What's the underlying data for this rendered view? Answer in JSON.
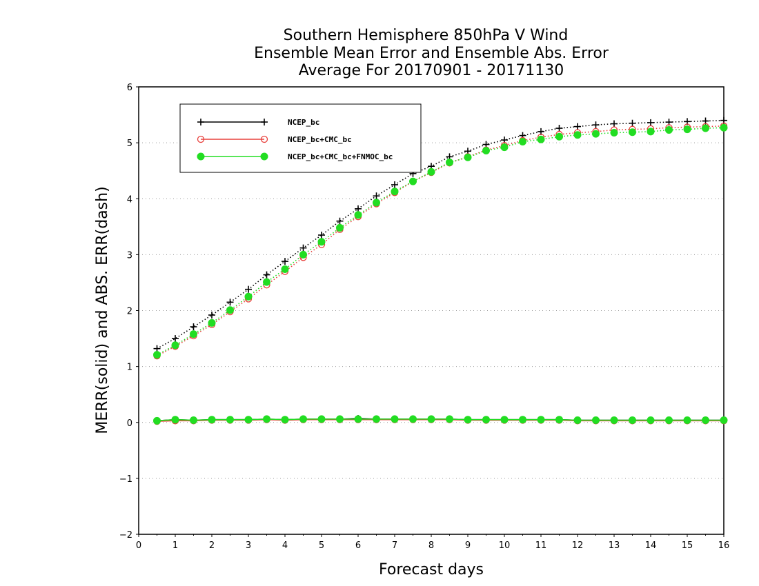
{
  "chart_data": {
    "type": "line",
    "title_lines": [
      "Southern Hemisphere 850hPa V Wind",
      "Ensemble Mean Error and Ensemble Abs. Error",
      "Average For 20170901 - 20171130"
    ],
    "xlabel": "Forecast days",
    "ylabel": "MERR(solid) and ABS. ERR(dash)",
    "xlim": [
      0,
      16
    ],
    "ylim": [
      -2,
      6
    ],
    "x_ticks": [
      0,
      1,
      2,
      3,
      4,
      5,
      6,
      7,
      8,
      9,
      10,
      11,
      12,
      13,
      14,
      15,
      16
    ],
    "y_ticks": [
      -2,
      -1,
      0,
      1,
      2,
      3,
      4,
      5,
      6
    ],
    "grid": "horizontal dotted",
    "legend_position": "top-left",
    "x": [
      0.5,
      1,
      1.5,
      2,
      2.5,
      3,
      3.5,
      4,
      4.5,
      5,
      5.5,
      6,
      6.5,
      7,
      7.5,
      8,
      8.5,
      9,
      9.5,
      10,
      10.5,
      11,
      11.5,
      12,
      12.5,
      13,
      13.5,
      14,
      14.5,
      15,
      15.5,
      16
    ],
    "series": [
      {
        "name": "NCEP_bc",
        "color": "#000000",
        "marker": "plus",
        "abs_err": [
          1.32,
          1.5,
          1.71,
          1.92,
          2.15,
          2.38,
          2.64,
          2.88,
          3.12,
          3.35,
          3.6,
          3.82,
          4.05,
          4.25,
          4.45,
          4.58,
          4.75,
          4.85,
          4.97,
          5.05,
          5.13,
          5.2,
          5.26,
          5.29,
          5.32,
          5.34,
          5.35,
          5.36,
          5.37,
          5.38,
          5.39,
          5.4
        ],
        "mean_err": [
          0.03,
          0.05,
          0.04,
          0.05,
          0.05,
          0.05,
          0.06,
          0.05,
          0.06,
          0.06,
          0.06,
          0.07,
          0.06,
          0.06,
          0.06,
          0.06,
          0.06,
          0.05,
          0.05,
          0.05,
          0.05,
          0.05,
          0.05,
          0.04,
          0.04,
          0.04,
          0.04,
          0.04,
          0.04,
          0.04,
          0.04,
          0.04
        ]
      },
      {
        "name": "NCEP_bc+CMC_bc",
        "color": "#e8403c",
        "marker": "open-circle",
        "abs_err": [
          1.19,
          1.36,
          1.55,
          1.75,
          1.98,
          2.21,
          2.46,
          2.7,
          2.95,
          3.18,
          3.45,
          3.68,
          3.91,
          4.11,
          4.31,
          4.47,
          4.64,
          4.75,
          4.87,
          4.95,
          5.04,
          5.1,
          5.15,
          5.18,
          5.2,
          5.23,
          5.24,
          5.25,
          5.27,
          5.28,
          5.29,
          5.3
        ],
        "mean_err": [
          0.02,
          0.03,
          0.03,
          0.04,
          0.04,
          0.04,
          0.05,
          0.04,
          0.05,
          0.05,
          0.05,
          0.05,
          0.05,
          0.05,
          0.05,
          0.05,
          0.05,
          0.04,
          0.04,
          0.04,
          0.04,
          0.04,
          0.04,
          0.03,
          0.03,
          0.03,
          0.03,
          0.03,
          0.03,
          0.03,
          0.03,
          0.03
        ]
      },
      {
        "name": "NCEP_bc+CMC_bc+FNMOC_bc",
        "color": "#22dd22",
        "marker": "filled-circle",
        "abs_err": [
          1.21,
          1.38,
          1.58,
          1.78,
          2.01,
          2.25,
          2.51,
          2.74,
          3.0,
          3.23,
          3.48,
          3.71,
          3.93,
          4.13,
          4.31,
          4.48,
          4.65,
          4.74,
          4.86,
          4.92,
          5.02,
          5.06,
          5.11,
          5.14,
          5.16,
          5.18,
          5.19,
          5.2,
          5.23,
          5.24,
          5.26,
          5.27
        ],
        "mean_err": [
          0.03,
          0.05,
          0.04,
          0.05,
          0.05,
          0.05,
          0.06,
          0.05,
          0.06,
          0.06,
          0.06,
          0.06,
          0.06,
          0.06,
          0.06,
          0.06,
          0.06,
          0.05,
          0.05,
          0.05,
          0.05,
          0.05,
          0.05,
          0.04,
          0.04,
          0.04,
          0.04,
          0.04,
          0.04,
          0.04,
          0.04,
          0.04
        ]
      }
    ]
  }
}
